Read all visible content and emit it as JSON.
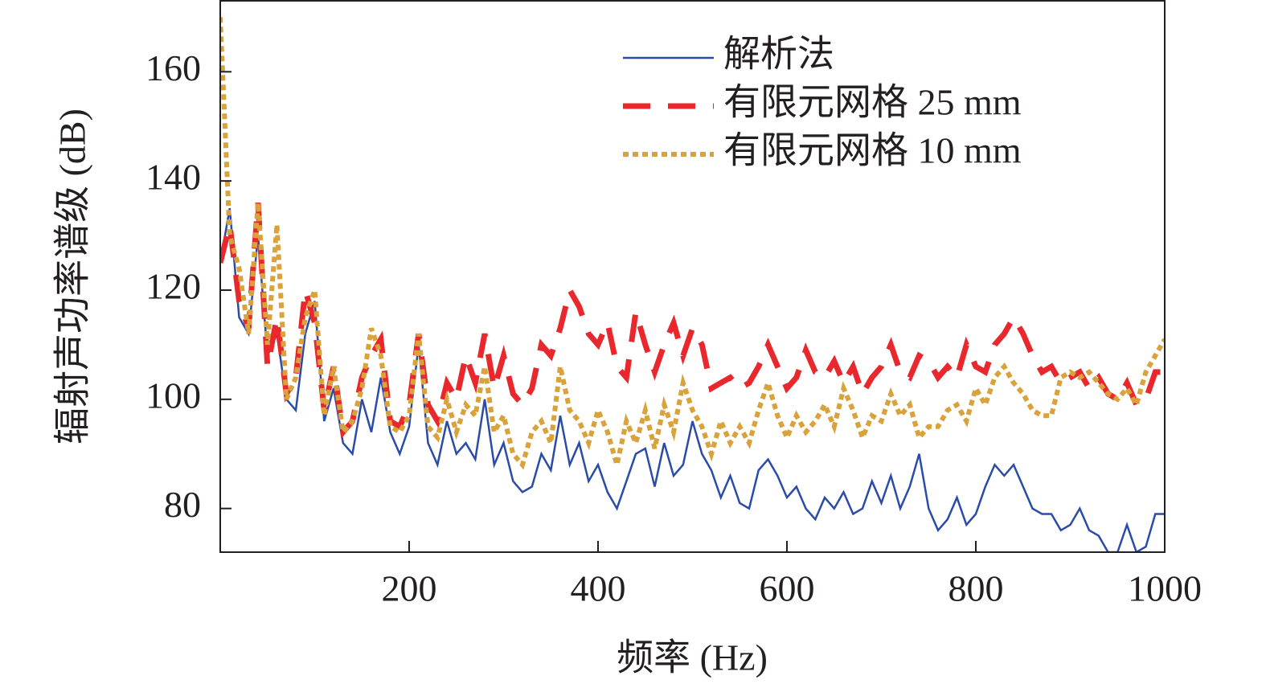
{
  "chart_data": {
    "type": "line",
    "xlabel": "频率 (Hz)",
    "ylabel": "辐射声功率谱级 (dB)",
    "xlim": [
      0,
      1000
    ],
    "ylim": [
      72,
      173
    ],
    "xticks": [
      200,
      400,
      600,
      800,
      1000
    ],
    "yticks": [
      80,
      100,
      120,
      140,
      160
    ],
    "legend": "upper right",
    "x": [
      0,
      10,
      20,
      30,
      40,
      50,
      60,
      70,
      80,
      90,
      100,
      110,
      120,
      130,
      140,
      150,
      160,
      170,
      180,
      190,
      200,
      210,
      220,
      230,
      240,
      250,
      260,
      270,
      280,
      290,
      300,
      310,
      320,
      330,
      340,
      350,
      360,
      370,
      380,
      390,
      400,
      410,
      420,
      430,
      440,
      450,
      460,
      470,
      480,
      490,
      500,
      510,
      520,
      530,
      540,
      550,
      560,
      570,
      580,
      590,
      600,
      610,
      620,
      630,
      640,
      650,
      660,
      670,
      680,
      690,
      700,
      710,
      720,
      730,
      740,
      750,
      760,
      770,
      780,
      790,
      800,
      810,
      820,
      830,
      840,
      850,
      860,
      870,
      880,
      890,
      900,
      910,
      920,
      930,
      940,
      950,
      960,
      970,
      980,
      990,
      1000
    ],
    "series": [
      {
        "name": "解析法",
        "color": "#2b4ba8",
        "style": "solid",
        "values": [
          125,
          135,
          115,
          112,
          130,
          108,
          112,
          100,
          98,
          112,
          118,
          96,
          102,
          92,
          90,
          100,
          94,
          104,
          94,
          90,
          95,
          110,
          92,
          88,
          96,
          90,
          92,
          89,
          100,
          88,
          92,
          85,
          83,
          84,
          90,
          87,
          97,
          88,
          92,
          85,
          88,
          83,
          80,
          85,
          90,
          91,
          84,
          92,
          86,
          88,
          96,
          90,
          87,
          82,
          86,
          81,
          80,
          87,
          89,
          86,
          82,
          84,
          80,
          78,
          82,
          80,
          83,
          79,
          80,
          85,
          81,
          86,
          80,
          84,
          90,
          80,
          76,
          78,
          82,
          77,
          79,
          84,
          88,
          86,
          88,
          84,
          80,
          79,
          79,
          76,
          77,
          80,
          76,
          75,
          72,
          72,
          77,
          72,
          73,
          79,
          79
        ]
      },
      {
        "name": "有限元网格 25 mm",
        "color": "#e8282d",
        "style": "dashed",
        "values": [
          125,
          132,
          118,
          113,
          136,
          106,
          115,
          101,
          104,
          120,
          114,
          98,
          106,
          94,
          96,
          104,
          108,
          111,
          96,
          95,
          99,
          112,
          99,
          96,
          103,
          100,
          108,
          103,
          112,
          102,
          108,
          101,
          99,
          102,
          110,
          108,
          113,
          120,
          117,
          112,
          110,
          114,
          106,
          104,
          116,
          110,
          105,
          110,
          114,
          108,
          113,
          110,
          102,
          103,
          104,
          102,
          103,
          106,
          110,
          106,
          102,
          104,
          109,
          105,
          104,
          107,
          103,
          106,
          101,
          104,
          106,
          110,
          105,
          104,
          108,
          107,
          104,
          106,
          104,
          110,
          106,
          105,
          110,
          112,
          115,
          112,
          108,
          105,
          106,
          103,
          104,
          105,
          102,
          104,
          101,
          100,
          103,
          99,
          100,
          105,
          105
        ]
      },
      {
        "name": "有限元网格 10 mm",
        "color": "#d9a23a",
        "style": "dotted",
        "values": [
          170,
          130,
          124,
          112,
          136,
          110,
          132,
          100,
          104,
          115,
          120,
          97,
          106,
          94,
          96,
          102,
          113,
          108,
          95,
          94,
          97,
          112,
          95,
          93,
          100,
          94,
          99,
          97,
          106,
          94,
          97,
          90,
          88,
          94,
          96,
          92,
          106,
          98,
          96,
          92,
          98,
          94,
          88,
          96,
          92,
          98,
          91,
          99,
          94,
          103,
          98,
          95,
          90,
          96,
          92,
          95,
          92,
          98,
          103,
          97,
          93,
          97,
          94,
          96,
          99,
          95,
          102,
          98,
          93,
          97,
          96,
          101,
          97,
          99,
          93,
          95,
          95,
          98,
          99,
          96,
          102,
          99,
          104,
          106,
          103,
          101,
          98,
          97,
          97,
          104,
          105,
          104,
          105,
          103,
          101,
          100,
          102,
          99,
          105,
          108,
          111
        ]
      }
    ]
  }
}
